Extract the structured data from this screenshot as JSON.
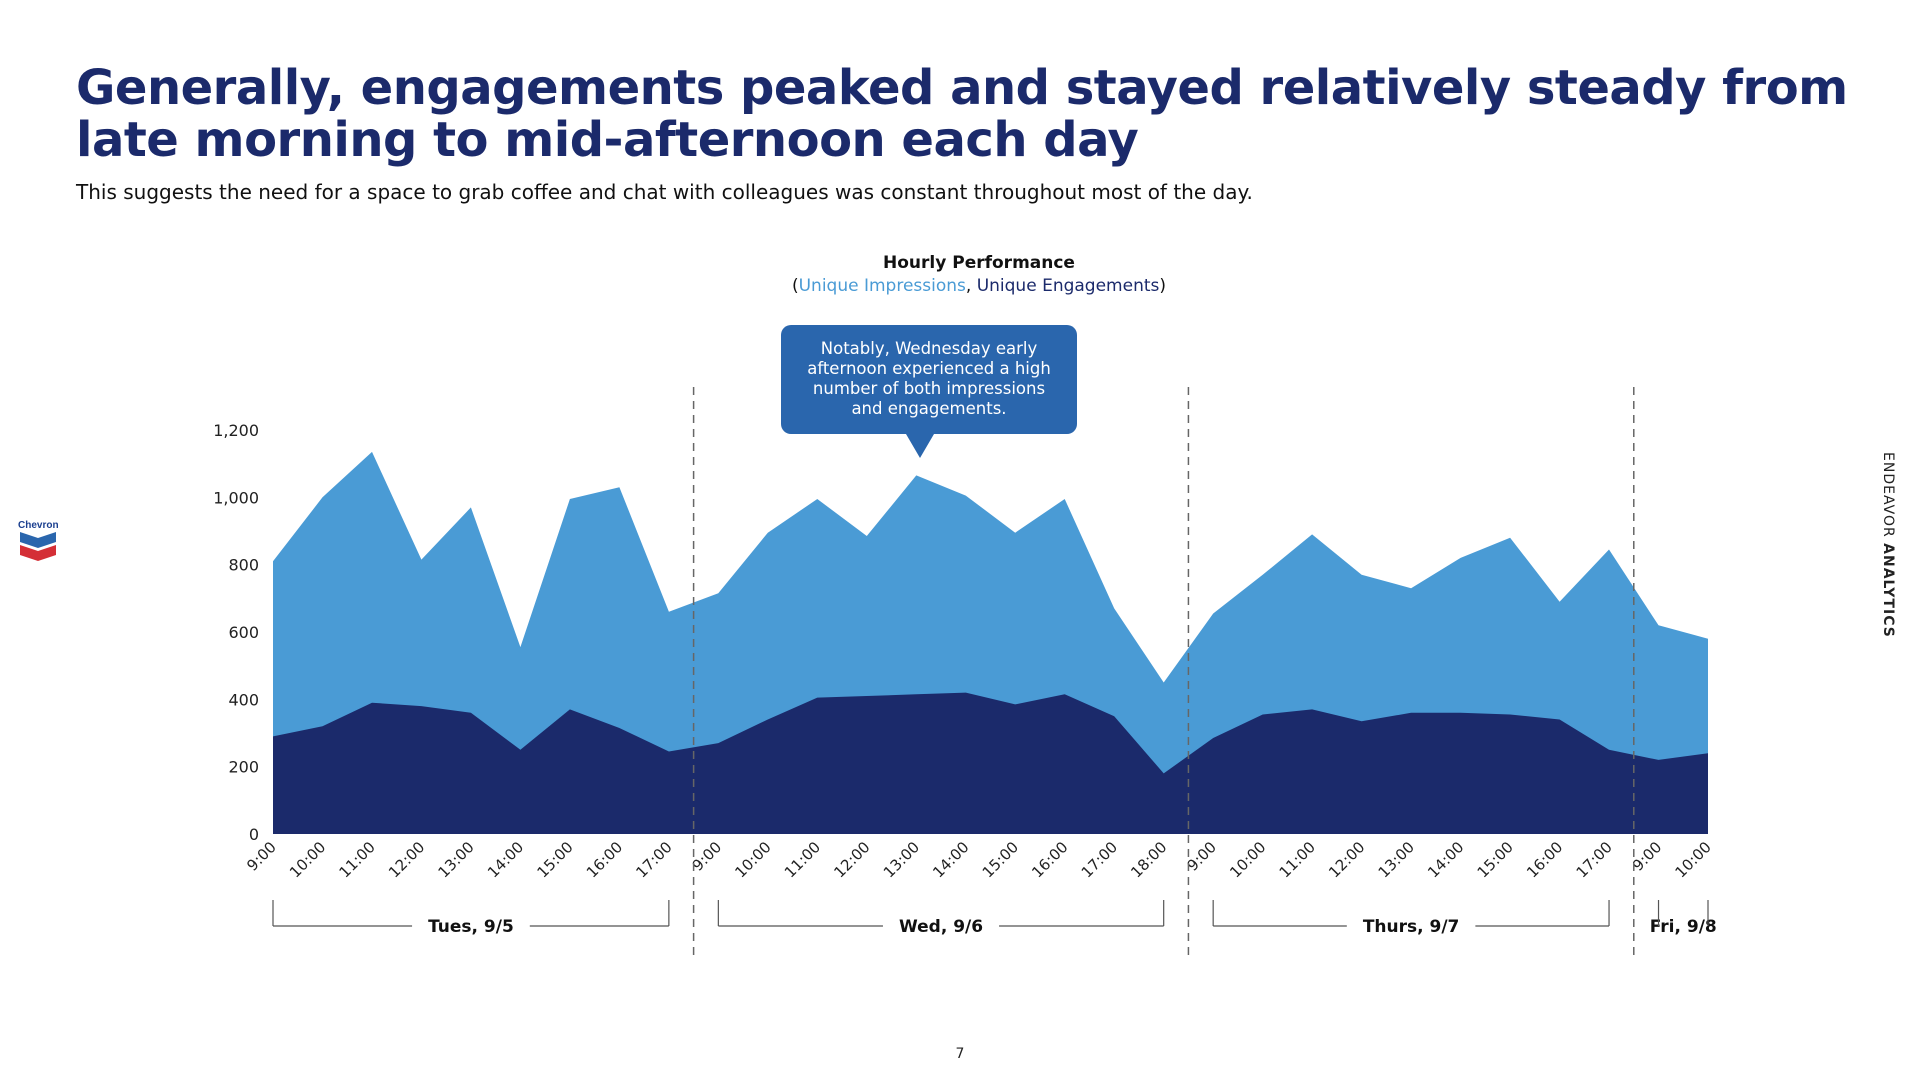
{
  "headline": "Generally, engagements peaked and stayed relatively steady from late morning to mid-afternoon each day",
  "subheadline": "This suggests the need for a space to grab coffee and chat with colleagues was constant throughout most of the day.",
  "logo_text": "Chevron",
  "brand": {
    "light": "ENDEAVOR",
    "bold": "ANALYTICS"
  },
  "page_number": "7",
  "callout": {
    "lines": [
      "Notably, Wednesday early",
      "afternoon experienced a high",
      "number of both impressions",
      "and engagements."
    ]
  },
  "colors": {
    "impressions": "#4a9bd5",
    "engagements": "#1b2a6b",
    "callout": "#2a66ad",
    "headline": "#1b2a6b"
  },
  "chart_data": {
    "type": "area",
    "title": "Hourly Performance",
    "subtitle_parts": {
      "open": "(",
      "a": "Unique Impressions",
      "sep": ", ",
      "b": "Unique Engagements",
      "close": ")"
    },
    "ylim": [
      0,
      1200
    ],
    "yticks": [
      0,
      200,
      400,
      600,
      800,
      1000,
      1200
    ],
    "ytick_labels": [
      "0",
      "200",
      "400",
      "600",
      "800",
      "1,000",
      "1,200"
    ],
    "x": [
      "9:00",
      "10:00",
      "11:00",
      "12:00",
      "13:00",
      "14:00",
      "15:00",
      "16:00",
      "17:00",
      "9:00",
      "10:00",
      "11:00",
      "12:00",
      "13:00",
      "14:00",
      "15:00",
      "16:00",
      "17:00",
      "18:00",
      "9:00",
      "10:00",
      "11:00",
      "12:00",
      "13:00",
      "14:00",
      "15:00",
      "16:00",
      "17:00",
      "9:00",
      "10:00"
    ],
    "series": [
      {
        "name": "Unique Impressions",
        "values": [
          810,
          1000,
          1135,
          815,
          970,
          555,
          995,
          1030,
          660,
          715,
          895,
          995,
          885,
          1065,
          1005,
          895,
          995,
          670,
          450,
          655,
          770,
          890,
          770,
          730,
          820,
          880,
          690,
          845,
          620,
          580
        ]
      },
      {
        "name": "Unique Engagements",
        "values": [
          290,
          320,
          390,
          380,
          360,
          250,
          370,
          315,
          245,
          270,
          340,
          405,
          410,
          415,
          420,
          385,
          415,
          350,
          180,
          285,
          355,
          370,
          335,
          360,
          360,
          355,
          340,
          250,
          220,
          240
        ]
      }
    ],
    "days": [
      {
        "label": "Tues, 9/5",
        "start": 0,
        "end": 8
      },
      {
        "label": "Wed, 9/6",
        "start": 9,
        "end": 18
      },
      {
        "label": "Thurs, 9/7",
        "start": 19,
        "end": 27
      },
      {
        "label": "Fri, 9/8",
        "start": 28,
        "end": 29
      }
    ],
    "grid": false,
    "legend": "none"
  }
}
